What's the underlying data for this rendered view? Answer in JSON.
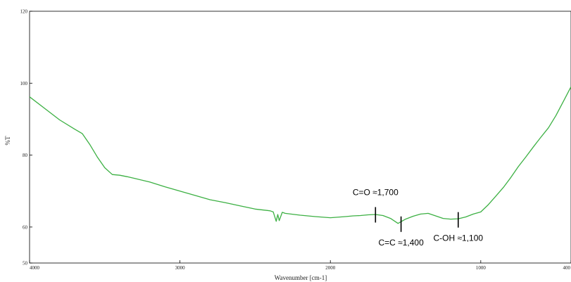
{
  "chart_data": {
    "type": "line",
    "title": "",
    "xlabel": "Wavenumber [cm-1]",
    "ylabel": "%T",
    "x_reversed": true,
    "xlim": [
      4000,
      400
    ],
    "ylim": [
      50,
      120
    ],
    "x_ticks": [
      4000,
      3000,
      2000,
      1000,
      400
    ],
    "y_ticks": [
      50,
      60,
      80,
      100,
      120
    ],
    "grid": false,
    "legend": "none",
    "line_color": "#3cb043",
    "series": [
      {
        "name": "",
        "x": [
          4000,
          3900,
          3800,
          3700,
          3650,
          3600,
          3550,
          3500,
          3450,
          3400,
          3350,
          3300,
          3200,
          3100,
          3000,
          2900,
          2800,
          2700,
          2600,
          2500,
          2400,
          2380,
          2360,
          2350,
          2340,
          2320,
          2300,
          2200,
          2100,
          2000,
          1900,
          1850,
          1800,
          1750,
          1700,
          1650,
          1600,
          1550,
          1500,
          1450,
          1400,
          1350,
          1300,
          1250,
          1200,
          1150,
          1100,
          1050,
          1000,
          950,
          900,
          850,
          800,
          750,
          700,
          650,
          600,
          550,
          500,
          450,
          400
        ],
        "y": [
          96.2,
          93.0,
          89.8,
          87.2,
          86.0,
          83.0,
          79.5,
          76.5,
          74.6,
          74.4,
          74.0,
          73.5,
          72.5,
          71.2,
          70.0,
          68.8,
          67.6,
          66.8,
          65.9,
          65.0,
          64.5,
          64.2,
          61.6,
          63.5,
          61.8,
          64.1,
          63.8,
          63.3,
          62.9,
          62.6,
          62.9,
          63.1,
          63.2,
          63.4,
          63.5,
          63.2,
          62.4,
          61.0,
          62.2,
          63.0,
          63.6,
          63.8,
          63.1,
          62.4,
          62.2,
          62.3,
          62.8,
          63.6,
          64.2,
          66.2,
          68.6,
          71.0,
          73.8,
          76.8,
          79.5,
          82.3,
          85.0,
          87.6,
          91.0,
          95.0,
          99.0
        ]
      }
    ],
    "annotations": [
      {
        "label": "C=O ≈1,700",
        "x": 1700,
        "y": 63.4
      },
      {
        "label": "C=C ≈1,400",
        "x": 1530,
        "y": 60.8
      },
      {
        "label": "C-OH ≈1,100",
        "x": 1150,
        "y": 62.0
      }
    ]
  }
}
